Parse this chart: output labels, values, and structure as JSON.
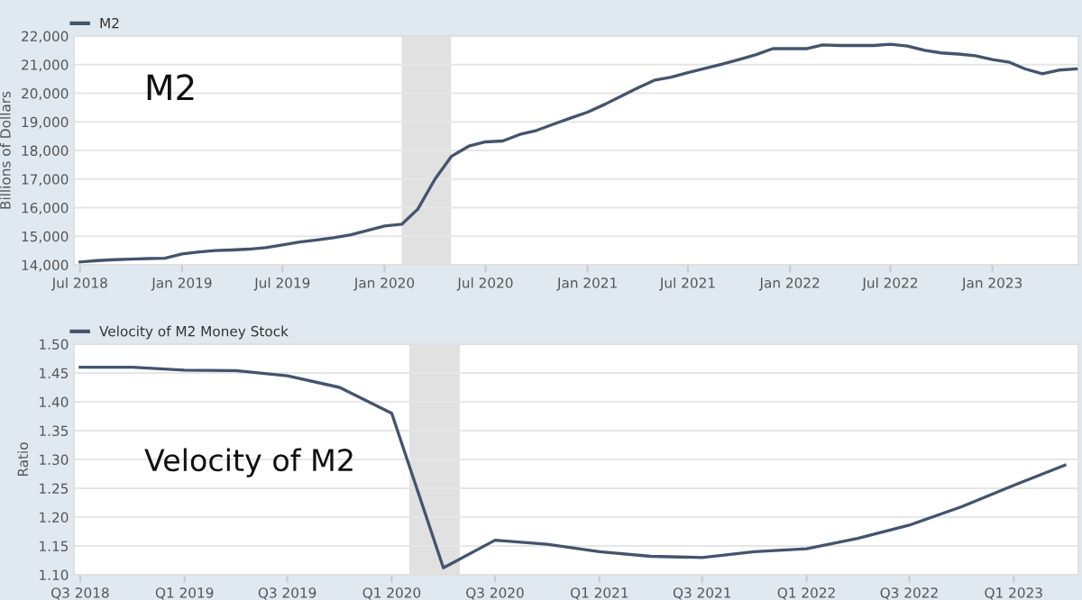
{
  "chart_data": [
    {
      "type": "line",
      "ylabel": "Billions of Dollars",
      "annotations": [
        "M2"
      ],
      "legend": "top left",
      "grid": "y",
      "marker": "none",
      "line_style": "solid",
      "x": [
        "2018-07",
        "2018-08",
        "2018-09",
        "2018-10",
        "2018-11",
        "2018-12",
        "2019-01",
        "2019-02",
        "2019-03",
        "2019-04",
        "2019-05",
        "2019-06",
        "2019-07",
        "2019-08",
        "2019-09",
        "2019-10",
        "2019-11",
        "2019-12",
        "2020-01",
        "2020-02",
        "2020-03",
        "2020-04",
        "2020-05",
        "2020-06",
        "2020-07",
        "2020-08",
        "2020-09",
        "2020-10",
        "2020-11",
        "2020-12",
        "2021-01",
        "2021-02",
        "2021-03",
        "2021-04",
        "2021-05",
        "2021-06",
        "2021-07",
        "2021-08",
        "2021-09",
        "2021-10",
        "2021-11",
        "2021-12",
        "2022-01",
        "2022-02",
        "2022-03",
        "2022-04",
        "2022-05",
        "2022-06",
        "2022-07",
        "2022-08",
        "2022-09",
        "2022-10",
        "2022-11",
        "2022-12",
        "2023-01",
        "2023-02",
        "2023-03",
        "2023-04",
        "2023-05",
        "2023-06"
      ],
      "series": [
        {
          "name": "M2",
          "color": "#44546e",
          "values": [
            14100,
            14150,
            14180,
            14200,
            14220,
            14230,
            14380,
            14450,
            14500,
            14520,
            14550,
            14600,
            14700,
            14800,
            14870,
            14950,
            15050,
            15200,
            15360,
            15420,
            15950,
            17000,
            17800,
            18150,
            18300,
            18330,
            18560,
            18700,
            18920,
            19130,
            19340,
            19610,
            19880,
            20180,
            20450,
            20560,
            20720,
            20870,
            21020,
            21180,
            21350,
            21560,
            21560,
            21560,
            21690,
            21670,
            21670,
            21670,
            21710,
            21650,
            21500,
            21410,
            21370,
            21310,
            21180,
            21080,
            20850,
            20680,
            20810,
            20850
          ]
        }
      ],
      "bands": [
        {
          "axis": "x",
          "from": "2020-02-01",
          "to": "2020-04-30",
          "label": null,
          "color": "#e1e1e1"
        }
      ],
      "xlim": [
        "2018-06-20",
        "2023-06-05"
      ],
      "ylim": [
        14000,
        22000
      ],
      "xticks": [
        {
          "value": "2018-07-01",
          "label": "Jul 2018"
        },
        {
          "value": "2019-01-01",
          "label": "Jan 2019"
        },
        {
          "value": "2019-07-01",
          "label": "Jul 2019"
        },
        {
          "value": "2020-01-01",
          "label": "Jan 2020"
        },
        {
          "value": "2020-07-01",
          "label": "Jul 2020"
        },
        {
          "value": "2021-01-01",
          "label": "Jan 2021"
        },
        {
          "value": "2021-07-01",
          "label": "Jul 2021"
        },
        {
          "value": "2022-01-01",
          "label": "Jan 2022"
        },
        {
          "value": "2022-07-01",
          "label": "Jul 2022"
        },
        {
          "value": "2023-01-01",
          "label": "Jan 2023"
        }
      ],
      "yticks": [
        {
          "value": 14000,
          "label": "14,000"
        },
        {
          "value": 15000,
          "label": "15,000"
        },
        {
          "value": 16000,
          "label": "16,000"
        },
        {
          "value": 17000,
          "label": "17,000"
        },
        {
          "value": 18000,
          "label": "18,000"
        },
        {
          "value": 19000,
          "label": "19,000"
        },
        {
          "value": 20000,
          "label": "20,000"
        },
        {
          "value": 21000,
          "label": "21,000"
        },
        {
          "value": 22000,
          "label": "22,000"
        }
      ]
    },
    {
      "type": "line",
      "ylabel": "Ratio",
      "annotations": [
        "Velocity of M2"
      ],
      "legend": "top left",
      "grid": "y",
      "marker": "none",
      "line_style": "solid",
      "x": [
        "2018-07",
        "2018-10",
        "2019-01",
        "2019-04",
        "2019-07",
        "2019-10",
        "2020-01",
        "2020-04",
        "2020-07",
        "2020-10",
        "2021-01",
        "2021-04",
        "2021-07",
        "2021-10",
        "2022-01",
        "2022-04",
        "2022-07",
        "2022-10",
        "2023-01",
        "2023-04"
      ],
      "series": [
        {
          "name": "Velocity of M2 Money Stock",
          "color": "#44546e",
          "values": [
            1.46,
            1.46,
            1.455,
            1.454,
            1.445,
            1.425,
            1.38,
            1.112,
            1.16,
            1.153,
            1.14,
            1.132,
            1.13,
            1.14,
            1.145,
            1.163,
            1.186,
            1.218,
            1.255,
            1.29
          ]
        }
      ],
      "bands": [
        {
          "axis": "x",
          "from": "2020-02-01",
          "to": "2020-04-30",
          "label": null,
          "color": "#e1e1e1"
        }
      ],
      "xlim": [
        "2018-06-20",
        "2023-04-25"
      ],
      "ylim": [
        1.1,
        1.5
      ],
      "xticks": [
        {
          "value": "2018-07-01",
          "label": "Q3 2018"
        },
        {
          "value": "2019-01-01",
          "label": "Q1 2019"
        },
        {
          "value": "2019-07-01",
          "label": "Q3 2019"
        },
        {
          "value": "2020-01-01",
          "label": "Q1 2020"
        },
        {
          "value": "2020-07-01",
          "label": "Q3 2020"
        },
        {
          "value": "2021-01-01",
          "label": "Q1 2021"
        },
        {
          "value": "2021-07-01",
          "label": "Q3 2021"
        },
        {
          "value": "2022-01-01",
          "label": "Q1 2022"
        },
        {
          "value": "2022-07-01",
          "label": "Q3 2022"
        },
        {
          "value": "2023-01-01",
          "label": "Q1 2023"
        }
      ],
      "yticks": [
        {
          "value": 1.1,
          "label": "1.10"
        },
        {
          "value": 1.15,
          "label": "1.15"
        },
        {
          "value": 1.2,
          "label": "1.20"
        },
        {
          "value": 1.25,
          "label": "1.25"
        },
        {
          "value": 1.3,
          "label": "1.30"
        },
        {
          "value": 1.35,
          "label": "1.35"
        },
        {
          "value": 1.4,
          "label": "1.40"
        },
        {
          "value": 1.45,
          "label": "1.45"
        },
        {
          "value": 1.5,
          "label": "1.50"
        }
      ]
    }
  ]
}
